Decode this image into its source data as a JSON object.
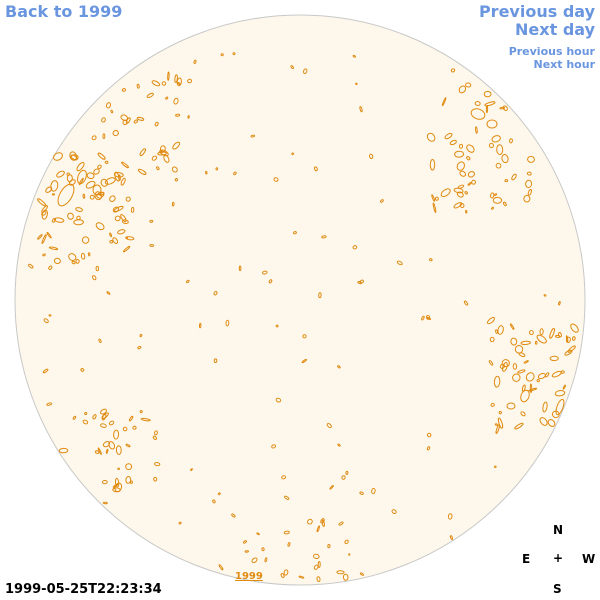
{
  "nav": {
    "back": "Back to 1999",
    "previous_day": "Previous day",
    "next_day": "Next day",
    "previous_hour": "Previous hour",
    "next_hour": "Next hour"
  },
  "timestamp": "1999-05-25T22:23:34",
  "year_label": "1999",
  "compass": {
    "north": "N",
    "east": "E",
    "center": "+",
    "west": "W",
    "south": "S"
  },
  "colors": {
    "disk_fill": "#fdf8eb",
    "disk_outline": "#c8c8c8",
    "contour": "#e08a10",
    "link": "#6a96e0"
  }
}
